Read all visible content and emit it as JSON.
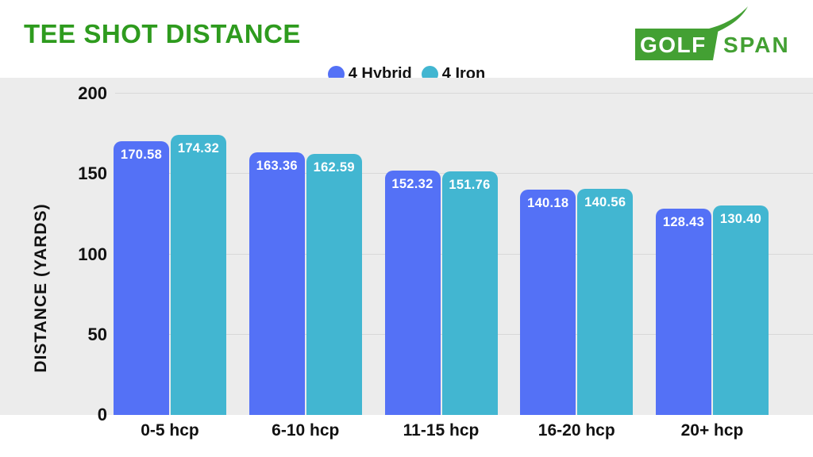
{
  "header": {
    "title": "TEE SHOT DISTANCE",
    "logo": {
      "text_box": "GOLF",
      "text_right": "SPAN",
      "green": "#43A033"
    }
  },
  "legend": [
    {
      "label": "4 Hybrid",
      "color": "#5471F6"
    },
    {
      "label": "4 Iron",
      "color": "#42B6D1"
    }
  ],
  "chart_data": {
    "type": "bar",
    "title": "TEE SHOT DISTANCE",
    "categories": [
      "0-5 hcp",
      "6-10 hcp",
      "11-15 hcp",
      "16-20 hcp",
      "20+ hcp"
    ],
    "series": [
      {
        "name": "4 Hybrid",
        "color": "#5471F6",
        "values": [
          170.58,
          163.36,
          152.32,
          140.18,
          128.43
        ],
        "value_labels": [
          "170.58",
          "163.36",
          "152.32",
          "140.18",
          "128.43"
        ]
      },
      {
        "name": "4 Iron",
        "color": "#42B6D1",
        "values": [
          174.32,
          162.59,
          151.76,
          140.56,
          130.4
        ],
        "value_labels": [
          "174.32",
          "162.59",
          "151.76",
          "140.56",
          "130.40"
        ]
      }
    ],
    "xlabel": "",
    "ylabel": "DISTANCE (YARDS)",
    "yticks": [
      0,
      50,
      100,
      150,
      200
    ],
    "ylim": [
      0,
      210
    ],
    "grid": true,
    "legend_position": "top-center",
    "value_labels": true,
    "plot_background": "#ECECEC"
  },
  "colors": {
    "title_green": "#2E9B1E",
    "logo_green": "#43A033",
    "hybrid_blue": "#5471F6",
    "iron_teal": "#42B6D1",
    "plot_bg": "#ECECEC",
    "gridline": "#D8D8D8",
    "text": "#111111"
  }
}
